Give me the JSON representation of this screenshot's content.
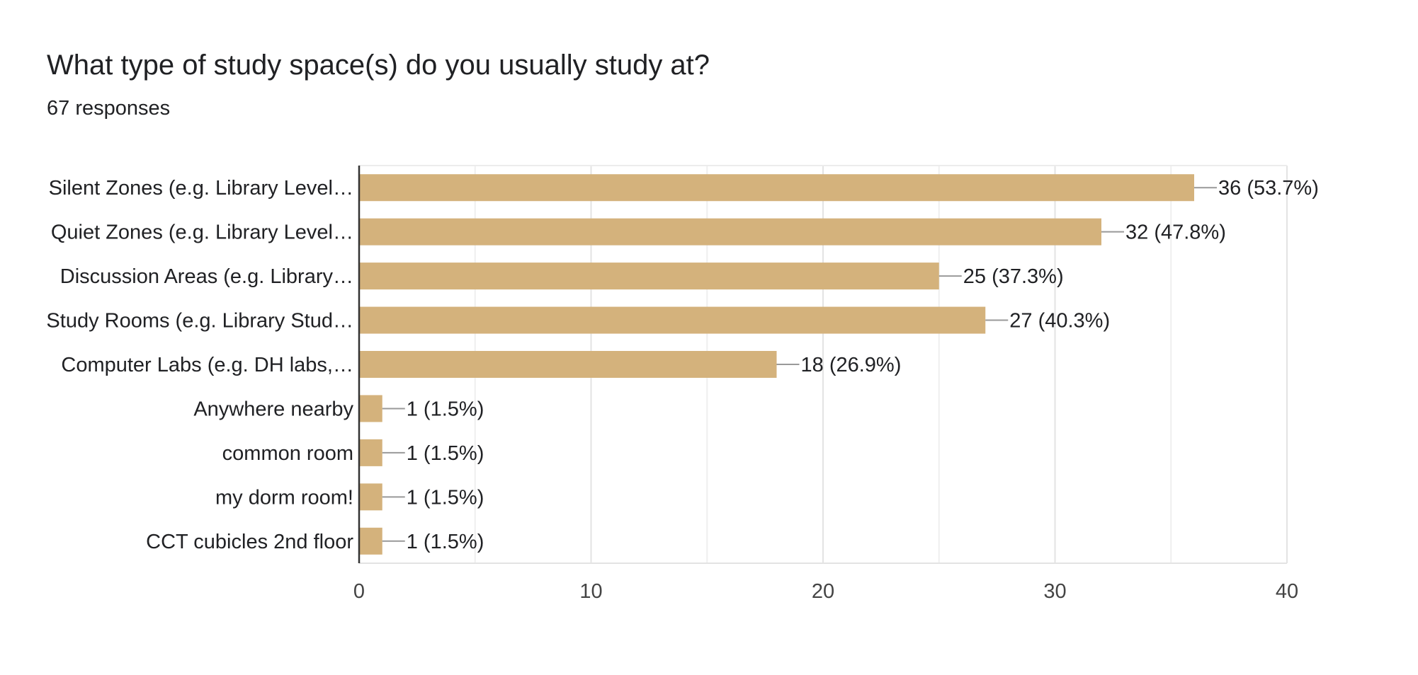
{
  "chart_data": {
    "type": "bar",
    "orientation": "horizontal",
    "title": "What type of study space(s) do you usually study at?",
    "subtitle": "67 responses",
    "categories": [
      "Silent Zones (e.g. Library Level…",
      "Quiet Zones (e.g. Library Level…",
      "Discussion Areas (e.g. Library…",
      "Study Rooms (e.g. Library Stud…",
      "Computer Labs (e.g. DH labs,…",
      "Anywhere nearby",
      "common room",
      "my dorm room!",
      "CCT cubicles 2nd floor"
    ],
    "values": [
      36,
      32,
      25,
      27,
      18,
      1,
      1,
      1,
      1
    ],
    "value_labels": [
      "36 (53.7%)",
      "32 (47.8%)",
      "25 (37.3%)",
      "27 (40.3%)",
      "18 (26.9%)",
      "1 (1.5%)",
      "1 (1.5%)",
      "1 (1.5%)",
      "1 (1.5%)"
    ],
    "xlim": [
      0,
      40
    ],
    "xticks": [
      0,
      10,
      20,
      30,
      40
    ],
    "grid": true,
    "bar_color": "#d4b27c"
  }
}
